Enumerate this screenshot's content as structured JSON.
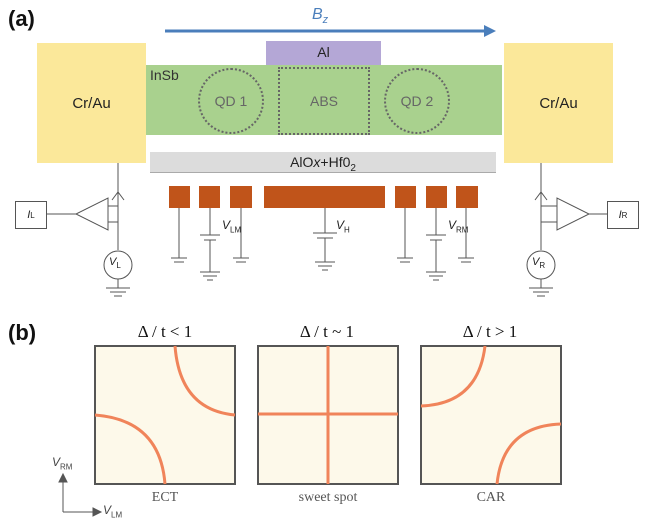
{
  "panel_a": {
    "label": "(a)",
    "bz": {
      "symbol": "B",
      "sub": "z"
    },
    "left_contact": "Cr/Au",
    "right_contact": "Cr/Au",
    "al": "Al",
    "insb": "InSb",
    "qd1": "QD 1",
    "abs": "ABS",
    "qd2": "QD 2",
    "dielectric": {
      "main": "AlO",
      "x": "x",
      "rest": "+Hf0",
      "sub": "2"
    },
    "gates": {
      "vlm": {
        "sym": "V",
        "sub": "LM"
      },
      "vh": {
        "sym": "V",
        "sub": "H"
      },
      "vrm": {
        "sym": "V",
        "sub": "RM"
      }
    },
    "left_meter": {
      "current": {
        "sym": "I",
        "sub": "L"
      },
      "voltage": {
        "sym": "V",
        "sub": "L"
      }
    },
    "right_meter": {
      "current": {
        "sym": "I",
        "sub": "R"
      },
      "voltage": {
        "sym": "V",
        "sub": "R"
      }
    },
    "colors": {
      "contact": "#fbe89a",
      "insb": "#a9d18e",
      "al": "#b4a7d6",
      "gate": "#c0541a",
      "arrow": "#4a7ebb"
    }
  },
  "panel_b": {
    "label": "(b)",
    "plots": [
      {
        "title": "Δ / t < 1",
        "caption": "ECT"
      },
      {
        "title": "Δ / t ~ 1",
        "caption": "sweet spot"
      },
      {
        "title": "Δ / t > 1",
        "caption": "CAR"
      }
    ],
    "axis": {
      "y": {
        "sym": "V",
        "sub": "RM"
      },
      "x": {
        "sym": "V",
        "sub": "LM"
      }
    },
    "colors": {
      "curve": "#f0845a",
      "plot_bg": "#fdf9ea"
    }
  }
}
